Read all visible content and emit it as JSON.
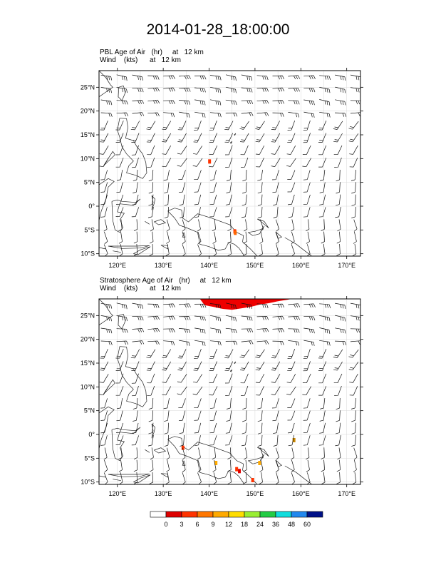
{
  "title": "2014-01-28_18:00:00",
  "chart_data": [
    {
      "type": "map",
      "title": "PBL Age of Air   (hr)     at   12 km",
      "subtitle": "Wind    (kts)      at   12 km",
      "xlim": [
        116,
        173
      ],
      "ylim": [
        -10.5,
        28.5
      ],
      "x_ticks": [
        {
          "value": 120,
          "label": "120°E"
        },
        {
          "value": 130,
          "label": "130°E"
        },
        {
          "value": 140,
          "label": "140°E"
        },
        {
          "value": 150,
          "label": "150°E"
        },
        {
          "value": 160,
          "label": "160°E"
        },
        {
          "value": 170,
          "label": "170°E"
        }
      ],
      "y_ticks": [
        {
          "value": 25,
          "label": "25°N"
        },
        {
          "value": 20,
          "label": "20°N"
        },
        {
          "value": 15,
          "label": "15°N"
        },
        {
          "value": 10,
          "label": "10°N"
        },
        {
          "value": 5,
          "label": "5°N"
        },
        {
          "value": 0,
          "label": "0°"
        },
        {
          "value": -5,
          "label": "5°S"
        },
        {
          "value": -10,
          "label": "10°S"
        }
      ],
      "grid": true,
      "shaded_areas": [
        {
          "lon": 140.1,
          "lat": 9.4,
          "color": "#ff3300"
        },
        {
          "lon": 145.6,
          "lat": -5.3,
          "color": "#ff3300"
        },
        {
          "lon": 145.7,
          "lat": -5.6,
          "color": "#ff6600"
        }
      ]
    },
    {
      "type": "map",
      "title": "Stratosphere Age of Air   (hr)     at   12 km",
      "subtitle": "Wind    (kts)      at   12 km",
      "xlim": [
        116,
        173
      ],
      "ylim": [
        -10.5,
        28.5
      ],
      "x_ticks": [
        {
          "value": 120,
          "label": "120°E"
        },
        {
          "value": 130,
          "label": "130°E"
        },
        {
          "value": 140,
          "label": "140°E"
        },
        {
          "value": 150,
          "label": "150°E"
        },
        {
          "value": 160,
          "label": "160°E"
        },
        {
          "value": 170,
          "label": "170°E"
        }
      ],
      "y_ticks": [
        {
          "value": 25,
          "label": "25°N"
        },
        {
          "value": 20,
          "label": "20°N"
        },
        {
          "value": 15,
          "label": "15°N"
        },
        {
          "value": 10,
          "label": "10°N"
        },
        {
          "value": 5,
          "label": "5°N"
        },
        {
          "value": 0,
          "label": "0°"
        },
        {
          "value": -5,
          "label": "5°S"
        },
        {
          "value": -10,
          "label": "10°S"
        }
      ],
      "grid": true,
      "stratosphere_region": {
        "color": "#ee0000",
        "boundary": [
          [
            138,
            28.5
          ],
          [
            139,
            27.2
          ],
          [
            141,
            26.8
          ],
          [
            143,
            26.4
          ],
          [
            145,
            26.2
          ],
          [
            147,
            26.5
          ],
          [
            149,
            26.8
          ],
          [
            151,
            27.3
          ],
          [
            153,
            27.6
          ],
          [
            155,
            28.0
          ],
          [
            157,
            28.3
          ],
          [
            158,
            28.5
          ]
        ]
      },
      "shaded_areas": [
        {
          "lon": 134.3,
          "lat": -2.8,
          "color": "#ff3300"
        },
        {
          "lon": 146.0,
          "lat": -7.3,
          "color": "#ff3300"
        },
        {
          "lon": 146.6,
          "lat": -7.7,
          "color": "#dd0000"
        },
        {
          "lon": 149.5,
          "lat": -9.6,
          "color": "#ff3300"
        },
        {
          "lon": 151.0,
          "lat": -6.0,
          "color": "#ffaa00"
        },
        {
          "lon": 141.5,
          "lat": -6.0,
          "color": "#ffaa00"
        },
        {
          "lon": 158.5,
          "lat": -1.2,
          "color": "#cc8800"
        }
      ]
    }
  ],
  "colorbar": {
    "labels": [
      "0",
      "3",
      "6",
      "9",
      "12",
      "18",
      "24",
      "36",
      "48",
      "60"
    ],
    "colors": [
      "#ffffff",
      "#dd0000",
      "#ff3300",
      "#ff7700",
      "#ffaa00",
      "#ffdd00",
      "#99ee33",
      "#22cc44",
      "#11dddd",
      "#2288ee",
      "#001188"
    ]
  }
}
